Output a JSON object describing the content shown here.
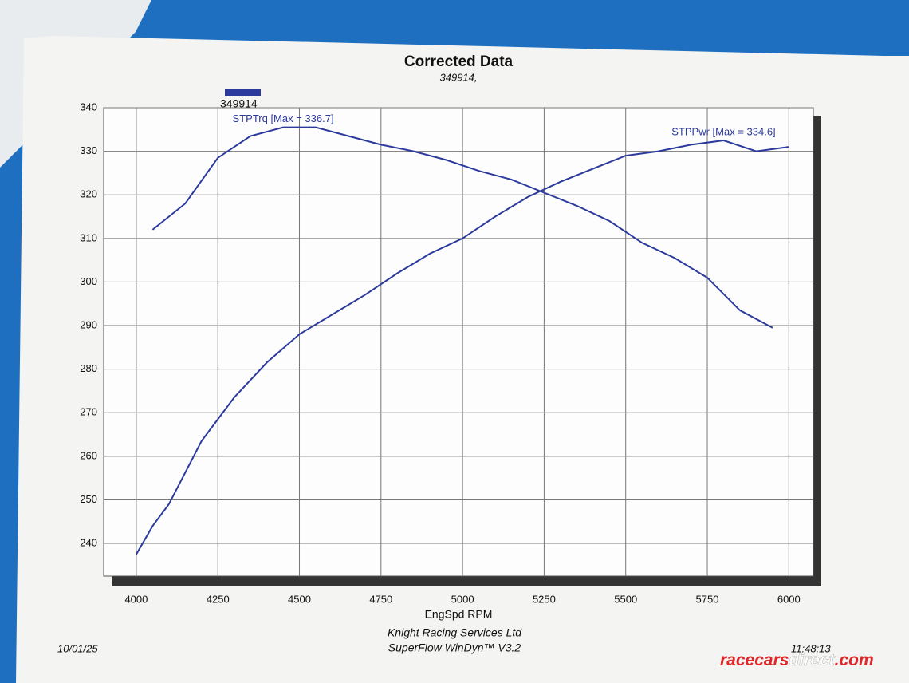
{
  "chart_data": {
    "type": "line",
    "title": "Corrected Data",
    "subtitle": "349914,",
    "legend": {
      "label": "349914",
      "color": "#2b3a9c"
    },
    "x_label": "EngSpd RPM",
    "xlim": [
      3900,
      6075
    ],
    "ylim": [
      232.5,
      340
    ],
    "xticks": [
      4000,
      4250,
      4500,
      4750,
      5000,
      5250,
      5500,
      5750,
      6000
    ],
    "yticks": [
      240,
      250,
      260,
      270,
      280,
      290,
      300,
      310,
      320,
      330,
      340
    ],
    "grid": true,
    "series": [
      {
        "name": "STPTrq [Max = 336.7]",
        "color": "#2b3a9c",
        "x": [
          4050,
          4150,
          4250,
          4350,
          4450,
          4550,
          4650,
          4750,
          4850,
          4950,
          5050,
          5150,
          5250,
          5350,
          5450,
          5550,
          5650,
          5750,
          5850,
          5950
        ],
        "values": [
          312,
          318,
          328.5,
          333.5,
          335.5,
          335.5,
          333.5,
          331.5,
          330,
          328,
          325.5,
          323.5,
          320.5,
          317.5,
          314,
          309,
          305.5,
          301,
          293.5,
          289.5
        ]
      },
      {
        "name": "STPPwr [Max = 334.6]",
        "color": "#2b3a9c",
        "x": [
          4000,
          4050,
          4100,
          4200,
          4300,
          4400,
          4500,
          4600,
          4700,
          4800,
          4900,
          5000,
          5100,
          5200,
          5300,
          5400,
          5500,
          5600,
          5700,
          5800,
          5900,
          6000
        ],
        "values": [
          237.5,
          244,
          249,
          263.5,
          273.5,
          281.5,
          288,
          292.5,
          297,
          302,
          306.5,
          310,
          315,
          319.5,
          323,
          326,
          329,
          330,
          331.5,
          332.5,
          330,
          331
        ]
      }
    ],
    "footer": {
      "company": "Knight Racing Services Ltd",
      "software": "SuperFlow WinDyn™ V3.2",
      "date": "10/01/25",
      "time": "11:48:13"
    }
  },
  "watermark": {
    "part1": "racecars",
    "part2": "direct",
    "part3": ".com"
  }
}
